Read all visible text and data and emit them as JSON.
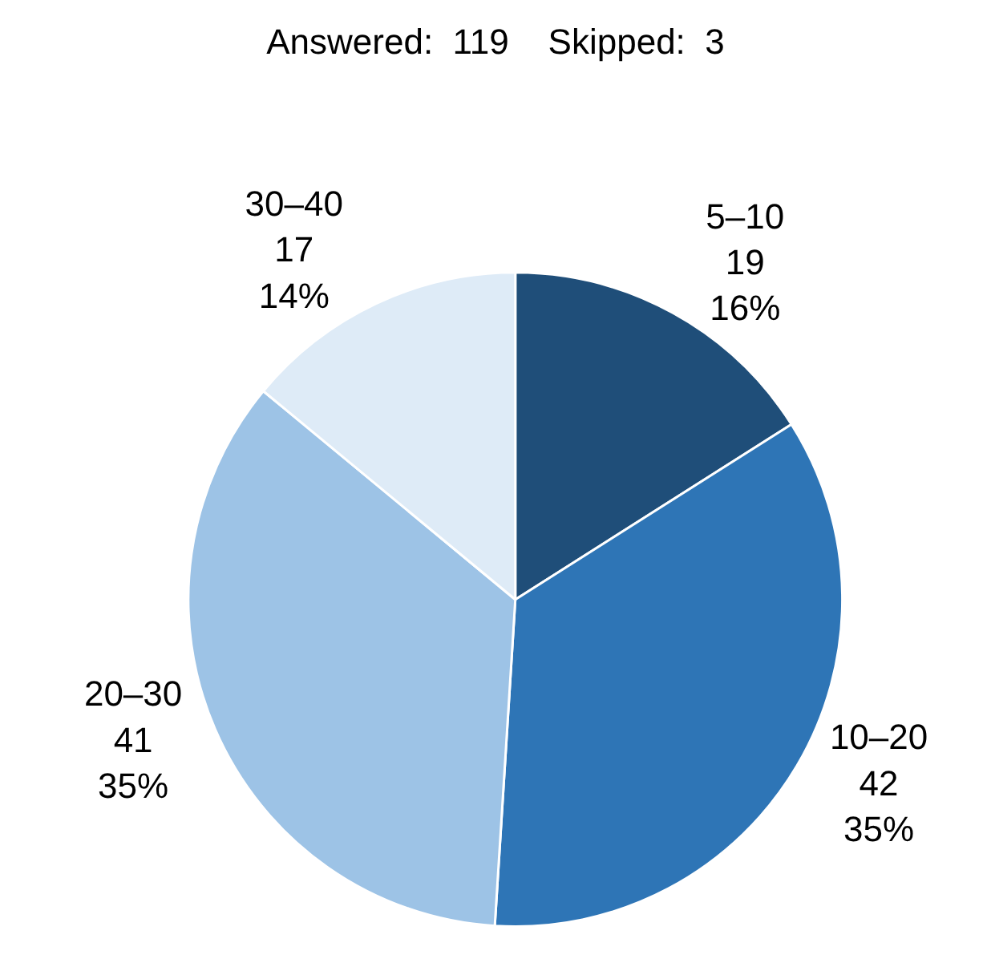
{
  "chart_data": {
    "type": "pie",
    "title": "Answered:  119    Skipped:  3",
    "categories": [
      "5–10",
      "10–20",
      "20–30",
      "30–40"
    ],
    "values": [
      16,
      35,
      35,
      14
    ],
    "colors": [
      "#1f4e79",
      "#2e75b6",
      "#9dc3e6",
      "#deebf7"
    ],
    "value_labels": [
      "19\n16%",
      "42\n35%",
      "41\n35%",
      "17\n14%"
    ],
    "legend": false
  }
}
